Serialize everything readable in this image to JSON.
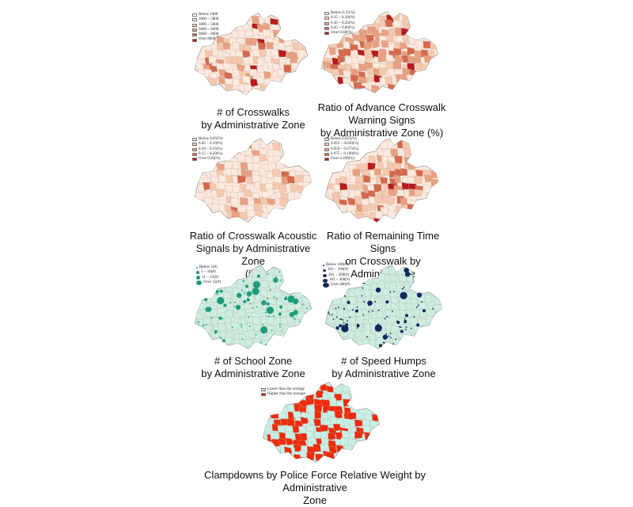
{
  "colors": {
    "choropleth": [
      "#fde9dd",
      "#f6c8ae",
      "#e9a080",
      "#d6694d",
      "#b81b1b"
    ],
    "school_fill": "#cdeee0",
    "school_dot": "#1c9c7a",
    "hump_fill": "#cdeee0",
    "hump_dot": "#11285e",
    "police_low": "#c9f0e6",
    "police_high": "#ee2b0c"
  },
  "panels": [
    {
      "id": "crosswalks",
      "legend": [
        "Below 1000",
        "1000 ~ 3000",
        "3000 ~ 5000",
        "5000 ~ 6000",
        "6000 ~ 8000",
        "Over 8000"
      ],
      "caption": [
        "# of Crosswalks",
        "by Administrative Zone"
      ]
    },
    {
      "id": "advance-warning",
      "legend": [
        "Below 0.15(%)",
        "0.15 ~ 0.30(%)",
        "0.30 ~ 0.45(%)",
        "0.45 ~ 0.60(%)",
        "Over 0.60(%)"
      ],
      "caption": [
        "Ratio of Advance Crosswalk",
        "Warning Signs",
        "by Administrative Zone (%)"
      ]
    },
    {
      "id": "acoustic",
      "legend": [
        "Below 0.05(%)",
        "0.05 ~ 0.10(%)",
        "0.10 ~ 0.15(%)",
        "0.15 ~ 0.20(%)",
        "Over 0.20(%)"
      ],
      "caption": [
        "Ratio of Crosswalk Acoustic",
        "Signals by Administrative Zone",
        "(%)"
      ]
    },
    {
      "id": "remaining-time",
      "legend": [
        "Below 0.025(%)",
        "0.025 ~ 0.050(%)",
        "0.050 ~ 0.075(%)",
        "0.075 ~ 0.100(%)",
        "Over 0.100(%)"
      ],
      "caption": [
        "Ratio of Remaining Time Signs",
        "on Crosswalk by Administrative",
        "Zone (%)"
      ]
    },
    {
      "id": "school-zone",
      "legend": [
        "Below 5(#)",
        "5 ~ 10(#)",
        "11 ~ 15(#)",
        "Over 15(#)"
      ],
      "caption": [
        "# of School Zone",
        "by Administrative Zone"
      ]
    },
    {
      "id": "speed-humps",
      "legend": [
        "Below 100(#)",
        "101 ~ 200(#)",
        "201 ~ 300(#)",
        "301 ~ 400(#)",
        "Over 400(#)"
      ],
      "caption": [
        "# of Speed Humps",
        "by Administrative Zone"
      ]
    },
    {
      "id": "police",
      "legend": [
        "Lower than the average",
        "Higher than the average"
      ],
      "caption": [
        "Clampdowns by Police Force  Relative Weight by Administrative",
        "Zone"
      ]
    }
  ]
}
